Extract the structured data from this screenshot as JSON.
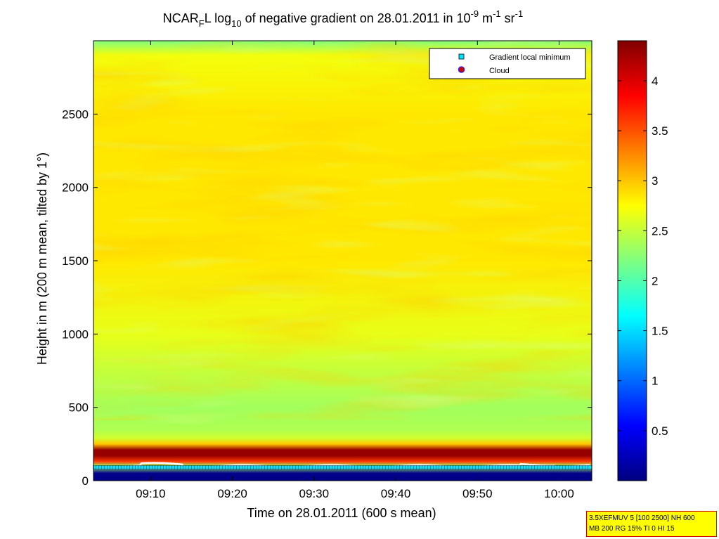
{
  "chart_data": {
    "type": "heatmap",
    "title_parts": {
      "pre": "NCAR",
      "sub_F": "F",
      "mid": "L log",
      "sub_10": "10",
      "post": " of negative gradient on 28.01.2011 in 10",
      "sup_a": "-9",
      "unit_m": " m",
      "sup_b": "-1",
      "unit_sr": " sr",
      "sup_c": "-1"
    },
    "xlabel": "Time on 28.01.2011 (600 s mean)",
    "ylabel": "Height in m (200 m mean, tilted by 1°)",
    "x_ticks": [
      "09:10",
      "09:20",
      "09:30",
      "09:40",
      "09:50",
      "10:00"
    ],
    "x_tick_minutes": [
      10,
      20,
      30,
      40,
      50,
      60
    ],
    "xlim_minutes": [
      3,
      64
    ],
    "y_ticks": [
      "0",
      "500",
      "1000",
      "1500",
      "2000",
      "2500"
    ],
    "y_tick_values": [
      0,
      500,
      1000,
      1500,
      2000,
      2500
    ],
    "ylim": [
      0,
      3000
    ],
    "colorbar": {
      "ticks": [
        "0.5",
        "1",
        "1.5",
        "2",
        "2.5",
        "3",
        "3.5",
        "4"
      ],
      "tick_values": [
        0.5,
        1,
        1.5,
        2,
        2.5,
        3,
        3.5,
        4
      ],
      "range": [
        0,
        4.4
      ],
      "colormap": "jet"
    },
    "height_profile": {
      "heights": [
        0,
        50,
        100,
        130,
        170,
        210,
        250,
        290,
        350,
        500,
        1000,
        1500,
        2000,
        2500,
        2900,
        3000
      ],
      "log10_values": [
        0.05,
        0.05,
        2.3,
        3.6,
        4.3,
        4.3,
        3.0,
        2.55,
        2.4,
        2.35,
        2.65,
        2.85,
        2.85,
        2.85,
        2.7,
        2.2
      ]
    },
    "gradient_local_minimum_height": 100,
    "legend": {
      "position": "top-right",
      "entries": [
        {
          "label": "Gradient local minimum",
          "marker": "square",
          "color": "#00e5ff"
        },
        {
          "label": "Cloud",
          "marker": "circle",
          "color": "#cc0000"
        }
      ]
    }
  },
  "info_box": {
    "line1": "3.5XEFMUV 5 [100 2500] NH 600",
    "line2": "MB 200 RG 15% TI 0 HI 15"
  }
}
